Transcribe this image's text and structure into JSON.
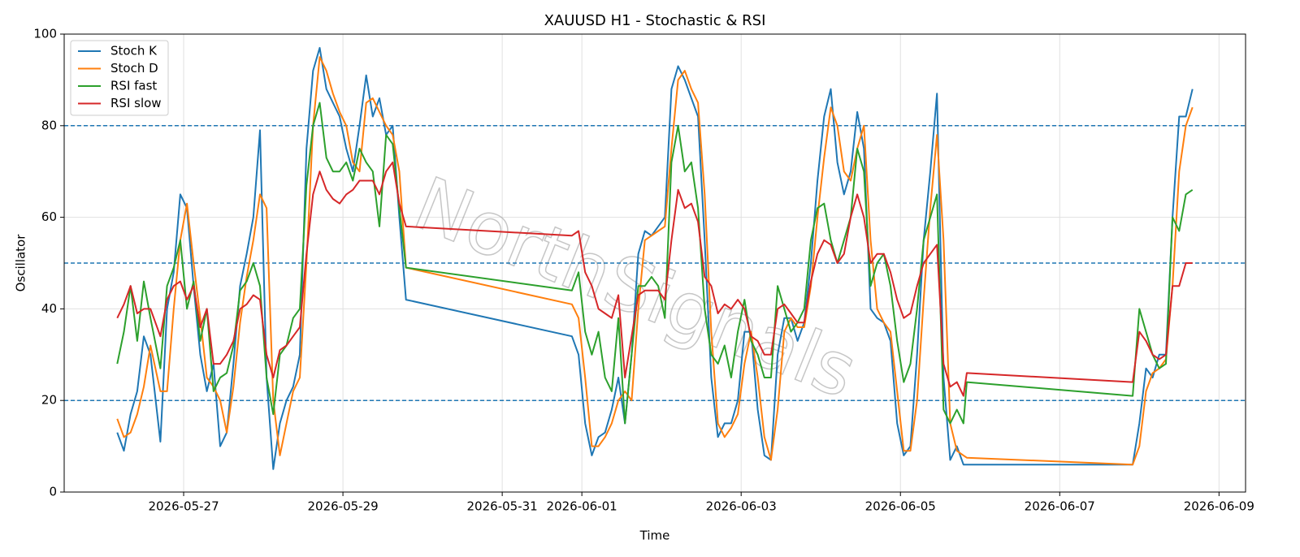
{
  "chart_data": {
    "type": "line",
    "title": "XAUUSD H1 - Stochastic & RSI",
    "xlabel": "Time",
    "ylabel": "Oscillator",
    "watermark": "NorthSignals",
    "x": [
      "2026-05-26 04:00",
      "2026-05-26 06:00",
      "2026-05-26 08:00",
      "2026-05-26 10:00",
      "2026-05-26 12:00",
      "2026-05-26 14:00",
      "2026-05-26 17:00",
      "2026-05-26 19:00",
      "2026-05-26 21:00",
      "2026-05-26 23:00",
      "2026-05-27 01:00",
      "2026-05-27 03:00",
      "2026-05-27 05:00",
      "2026-05-27 07:00",
      "2026-05-27 09:00",
      "2026-05-27 11:00",
      "2026-05-27 13:00",
      "2026-05-27 15:00",
      "2026-05-27 17:00",
      "2026-05-27 19:00",
      "2026-05-27 21:00",
      "2026-05-27 23:00",
      "2026-05-28 01:00",
      "2026-05-28 03:00",
      "2026-05-28 05:00",
      "2026-05-28 07:00",
      "2026-05-28 09:00",
      "2026-05-28 11:00",
      "2026-05-28 13:00",
      "2026-05-28 15:00",
      "2026-05-28 17:00",
      "2026-05-28 19:00",
      "2026-05-28 21:00",
      "2026-05-28 23:00",
      "2026-05-29 01:00",
      "2026-05-29 03:00",
      "2026-05-29 05:00",
      "2026-05-29 07:00",
      "2026-05-29 09:00",
      "2026-05-29 11:00",
      "2026-05-29 13:00",
      "2026-05-29 15:00",
      "2026-05-29 17:00",
      "2026-05-29 19:00",
      "2026-05-31 21:00",
      "2026-05-31 23:00",
      "2026-06-01 01:00",
      "2026-06-01 03:00",
      "2026-06-01 05:00",
      "2026-06-01 07:00",
      "2026-06-01 09:00",
      "2026-06-01 11:00",
      "2026-06-01 13:00",
      "2026-06-01 15:00",
      "2026-06-01 17:00",
      "2026-06-01 19:00",
      "2026-06-01 21:00",
      "2026-06-01 23:00",
      "2026-06-02 01:00",
      "2026-06-02 03:00",
      "2026-06-02 05:00",
      "2026-06-02 07:00",
      "2026-06-02 09:00",
      "2026-06-02 11:00",
      "2026-06-02 13:00",
      "2026-06-02 15:00",
      "2026-06-02 17:00",
      "2026-06-02 19:00",
      "2026-06-02 21:00",
      "2026-06-02 23:00",
      "2026-06-03 01:00",
      "2026-06-03 03:00",
      "2026-06-03 05:00",
      "2026-06-03 07:00",
      "2026-06-03 09:00",
      "2026-06-03 11:00",
      "2026-06-03 13:00",
      "2026-06-03 15:00",
      "2026-06-03 17:00",
      "2026-06-03 19:00",
      "2026-06-03 21:00",
      "2026-06-03 23:00",
      "2026-06-04 01:00",
      "2026-06-04 03:00",
      "2026-06-04 05:00",
      "2026-06-04 07:00",
      "2026-06-04 09:00",
      "2026-06-04 11:00",
      "2026-06-04 13:00",
      "2026-06-04 15:00",
      "2026-06-04 17:00",
      "2026-06-04 19:00",
      "2026-06-04 21:00",
      "2026-06-04 23:00",
      "2026-06-05 01:00",
      "2026-06-05 03:00",
      "2026-06-05 05:00",
      "2026-06-05 07:00",
      "2026-06-05 09:00",
      "2026-06-05 11:00",
      "2026-06-05 13:00",
      "2026-06-05 15:00",
      "2026-06-05 17:00",
      "2026-06-05 19:00",
      "2026-06-05 20:00",
      "2026-06-07 22:00",
      "2026-06-08 00:00",
      "2026-06-08 02:00",
      "2026-06-08 04:00",
      "2026-06-08 06:00",
      "2026-06-08 08:00",
      "2026-06-08 10:00",
      "2026-06-08 12:00",
      "2026-06-08 14:00",
      "2026-06-08 16:00"
    ],
    "series": [
      {
        "name": "Stoch K",
        "color": "#1f77b4",
        "values": [
          13,
          9,
          17,
          22,
          34,
          30,
          11,
          40,
          48,
          65,
          62,
          45,
          30,
          22,
          28,
          10,
          13,
          28,
          45,
          52,
          60,
          79,
          25,
          5,
          15,
          20,
          23,
          30,
          75,
          92,
          97,
          88,
          85,
          82,
          75,
          70,
          80,
          91,
          82,
          86,
          78,
          80,
          60,
          42,
          34,
          30,
          15,
          8,
          12,
          13,
          18,
          25,
          15,
          30,
          52,
          57,
          56,
          58,
          60,
          88,
          93,
          90,
          86,
          82,
          55,
          25,
          12,
          15,
          15,
          20,
          35,
          35,
          18,
          8,
          7,
          30,
          38,
          38,
          33,
          37,
          50,
          68,
          82,
          88,
          72,
          65,
          70,
          83,
          75,
          40,
          38,
          37,
          33,
          15,
          8,
          10,
          30,
          55,
          70,
          87,
          25,
          7,
          10,
          6,
          6,
          6,
          15,
          27,
          25,
          30,
          30,
          60,
          82,
          82,
          88
        ]
      },
      {
        "name": "Stoch D",
        "color": "#ff7f0e",
        "values": [
          16,
          12,
          13,
          17,
          23,
          32,
          22,
          22,
          40,
          55,
          63,
          50,
          38,
          25,
          23,
          20,
          13,
          23,
          37,
          47,
          55,
          65,
          62,
          20,
          8,
          15,
          22,
          25,
          50,
          80,
          95,
          92,
          87,
          83,
          80,
          72,
          70,
          85,
          86,
          83,
          80,
          78,
          70,
          49,
          41,
          38,
          25,
          10,
          10,
          12,
          15,
          20,
          22,
          20,
          40,
          55,
          56,
          57,
          58,
          75,
          90,
          92,
          88,
          85,
          65,
          35,
          15,
          12,
          14,
          17,
          28,
          35,
          25,
          12,
          7,
          18,
          35,
          38,
          36,
          36,
          45,
          60,
          73,
          84,
          80,
          70,
          68,
          75,
          80,
          55,
          40,
          37,
          35,
          22,
          9,
          9,
          20,
          42,
          62,
          78,
          55,
          15,
          9,
          8,
          7.5,
          6,
          10,
          22,
          26,
          27,
          29,
          45,
          70,
          80,
          84
        ]
      },
      {
        "name": "RSI fast",
        "color": "#2ca02c",
        "values": [
          28,
          35,
          45,
          33,
          46,
          38,
          27,
          45,
          49,
          55,
          40,
          46,
          33,
          40,
          22,
          25,
          26,
          32,
          44,
          46,
          50,
          45,
          25,
          17,
          30,
          32,
          38,
          40,
          67,
          80,
          85,
          73,
          70,
          70,
          72,
          68,
          75,
          72,
          70,
          58,
          78,
          76,
          62,
          49,
          44,
          48,
          35,
          30,
          35,
          25,
          22,
          38,
          15,
          30,
          45,
          45,
          47,
          45,
          38,
          72,
          80,
          70,
          72,
          62,
          40,
          30,
          28,
          32,
          25,
          35,
          42,
          33,
          30,
          25,
          25,
          45,
          40,
          35,
          37,
          40,
          55,
          62,
          63,
          55,
          50,
          55,
          60,
          75,
          70,
          45,
          50,
          52,
          45,
          33,
          24,
          28,
          40,
          55,
          60,
          65,
          18,
          15,
          18,
          15,
          24,
          21,
          40,
          35,
          30,
          27,
          28,
          60,
          57,
          65,
          66
        ]
      },
      {
        "name": "RSI slow",
        "color": "#d62728",
        "values": [
          38,
          41,
          45,
          39,
          40,
          40,
          34,
          42,
          45,
          46,
          42,
          45,
          36,
          40,
          28,
          28,
          30,
          33,
          40,
          41,
          43,
          42,
          30,
          25,
          31,
          32,
          34,
          36,
          52,
          65,
          70,
          66,
          64,
          63,
          65,
          66,
          68,
          68,
          68,
          65,
          70,
          72,
          63,
          58,
          56,
          57,
          48,
          45,
          40,
          39,
          38,
          43,
          25,
          34,
          43,
          44,
          44,
          44,
          42,
          55,
          66,
          62,
          63,
          59,
          47,
          45,
          39,
          41,
          40,
          42,
          40,
          34,
          33,
          30,
          30,
          40,
          41,
          39,
          37,
          37,
          46,
          52,
          55,
          54,
          50,
          52,
          60,
          65,
          60,
          50,
          52,
          52,
          48,
          42,
          38,
          39,
          45,
          50,
          52,
          54,
          28,
          23,
          24,
          21,
          26,
          24,
          35,
          33,
          30,
          29,
          30,
          45,
          45,
          50,
          50
        ]
      }
    ],
    "reference_lines": [
      20,
      50,
      80
    ],
    "reference_color": "#1f77b4",
    "xlim": [
      "2026-05-25 12:00",
      "2026-06-09 08:00"
    ],
    "xticks": [
      "2026-05-27",
      "2026-05-29",
      "2026-05-31",
      "2026-06-01",
      "2026-06-03",
      "2026-06-05",
      "2026-06-07",
      "2026-06-09"
    ],
    "ylim": [
      0,
      100
    ],
    "yticks": [
      0,
      20,
      40,
      60,
      80,
      100
    ],
    "grid": true,
    "legend": "upper left"
  }
}
